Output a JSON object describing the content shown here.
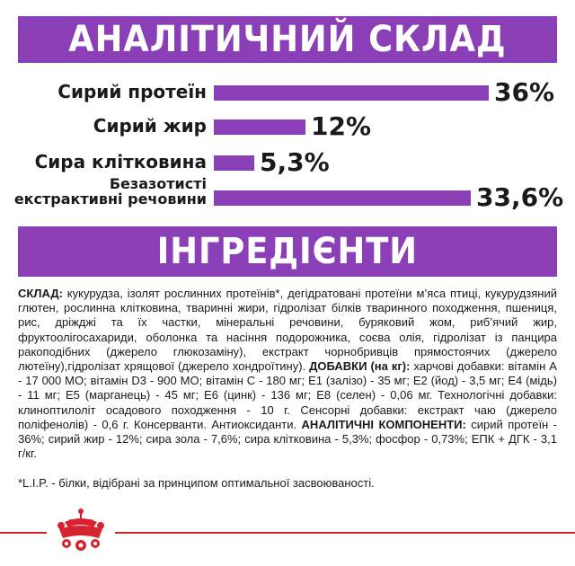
{
  "headers": {
    "analysis": "АНАЛІТИЧНИЙ СКЛАД",
    "ingredients": "ІНГРЕДІЄНТИ"
  },
  "nutrients": [
    {
      "label": "Сирий протеїн",
      "value": "36%",
      "percent": 36
    },
    {
      "label": "Сирий жир",
      "value": "12%",
      "percent": 12
    },
    {
      "label": "Сира клітковина",
      "value": "5,3%",
      "percent": 5.3
    },
    {
      "label_line1": "Безазотисті",
      "label_line2": "екстрактивні речовини",
      "value": "33,6%",
      "percent": 33.6
    }
  ],
  "composition": {
    "sklad_label": "СКЛАД:",
    "sklad_text": " кукурудза, ізолят рослинних протеїнів*, дегідратовані протеїни м’яса птиці, кукурудзяний глютен, рослинна клітковина, тваринні жири, гідролізат білків тваринного походження, пшениця, рис, дріжджі та їх частки, мінеральні речовини, буряковий жом, риб’ячий жир, фруктоолігосахариди, оболонка та насіння подорожника, соєва олія, гідролізат із панцира ракоподібних (джерело глюкозаміну), екстракт чорнобривців прямостоячих (джерело лютеїну),гідролізат хрящової (джерело хондроїтину).",
    "additives_label": "ДОБАВКИ (на кг):",
    "additives_text": " харчові добавки: вітамін А - 17 000 МО; вітамін D3 - 900 МО; вітамін С - 180 мг; Е1 (залізо) - 35 мг; Е2 (йод) - 3,5 мг; Е4 (мідь) - 11 мг; Е5 (марганець) - 45 мг; Е6 (цинк) - 136 мг; Е8 (селен) - 0,06 мг. Технологічні добавки: клиноптилоліт осадового походження - 10 г. Сенсорні добавки: екстракт чаю (джерело поліфенолів) - 0,6 г. Консерванти. Антиоксиданти.",
    "analytic_label": "АНАЛІТИЧНІ КОМПОНЕНТИ:",
    "analytic_text": " сирий протеїн - 36%; сирий жир - 12%; сира зола - 7,6%; сира клітковина - 5,3%; фосфор - 0,73%; ЕПК + ДГК - 3,1 г/кг.",
    "footnote": "*L.I.P. - білки, відібрані за принципом оптимальної засвоюваності."
  },
  "colors": {
    "banner": "#8a3fb6",
    "bar": "#8a3fb6",
    "footer_line": "#d7232f",
    "logo": "#d7232f"
  },
  "icons": {
    "logo": "royal-canin-crown-logo"
  }
}
